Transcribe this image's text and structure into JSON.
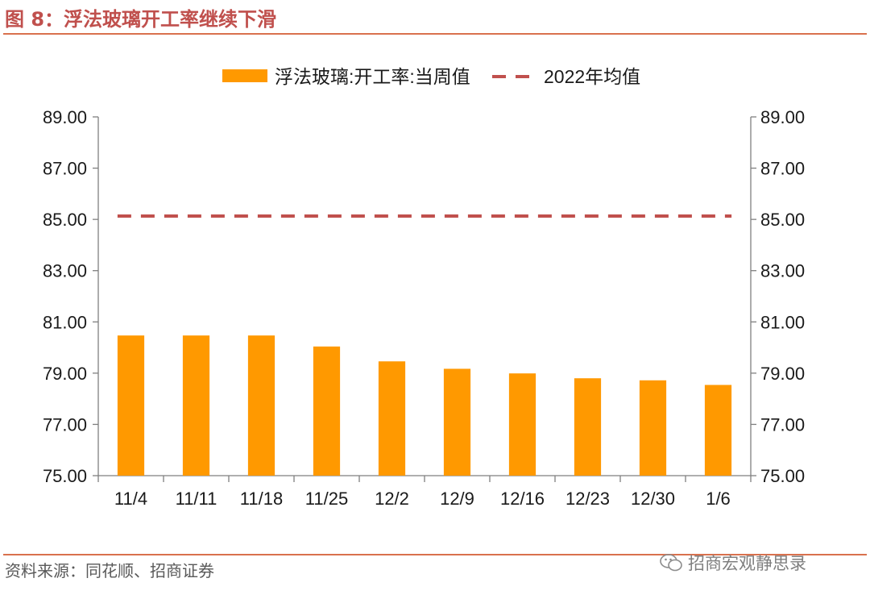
{
  "figure": {
    "title": "图 8：浮法玻璃开工率继续下滑",
    "source": "资料来源：同花顺、招商证券",
    "watermark": "招商宏观静思录"
  },
  "colors": {
    "bar": "#ff9900",
    "avg_line": "#c0504d",
    "title": "#c0504d",
    "rule": "#d9714e"
  },
  "chart_data": {
    "type": "bar",
    "categories": [
      "11/4",
      "11/11",
      "11/18",
      "11/25",
      "12/2",
      "12/9",
      "12/16",
      "12/23",
      "12/30",
      "1/6"
    ],
    "series": [
      {
        "name": "浮法玻璃:开工率:当周值",
        "kind": "bar",
        "values": [
          80.47,
          80.47,
          80.47,
          80.04,
          79.46,
          79.17,
          78.99,
          78.8,
          78.72,
          78.54
        ]
      },
      {
        "name": "2022年均值",
        "kind": "dashed-line",
        "values": [
          85.13,
          85.13,
          85.13,
          85.13,
          85.13,
          85.13,
          85.13,
          85.13,
          85.13,
          85.13
        ]
      }
    ],
    "ylim": [
      75,
      89
    ],
    "yticks": [
      "75.00",
      "77.00",
      "79.00",
      "81.00",
      "83.00",
      "85.00",
      "87.00",
      "89.00"
    ],
    "ytick_values": [
      75,
      77,
      79,
      81,
      83,
      85,
      87,
      89
    ],
    "secondary_axis": true,
    "legend_position": "top-center",
    "grid": false
  }
}
